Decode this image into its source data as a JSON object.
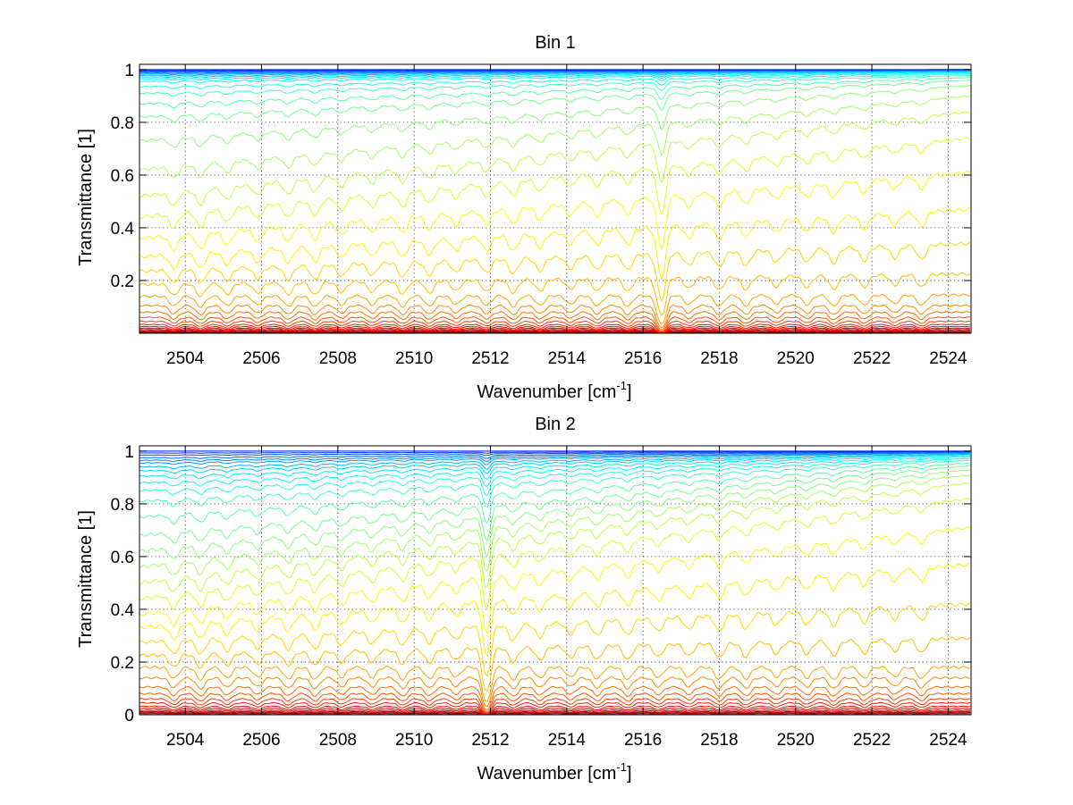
{
  "chart_data": [
    {
      "type": "line",
      "title": "Bin 1",
      "xlabel_main": "Wavenumber [cm",
      "xlabel_sup": "-1",
      "xlabel_end": "]",
      "ylabel": "Transmittance [1]",
      "xlim": [
        2502.8,
        2524.6
      ],
      "ylim": [
        0,
        1.02
      ],
      "xticks": [
        2504,
        2506,
        2508,
        2510,
        2512,
        2514,
        2516,
        2518,
        2520,
        2522,
        2524
      ],
      "yticks": [
        0.2,
        0.4,
        0.6,
        0.8,
        1
      ],
      "grid": true,
      "colormap": "jet (red = most absorbing, blue = least absorbing)",
      "series_baselines": [
        0.003,
        0.006,
        0.01,
        0.014,
        0.019,
        0.025,
        0.033,
        0.045,
        0.06,
        0.08,
        0.105,
        0.14,
        0.185,
        0.235,
        0.29,
        0.36,
        0.44,
        0.52,
        0.62,
        0.73,
        0.82,
        0.87,
        0.91,
        0.935,
        0.955,
        0.965,
        0.972,
        0.978,
        0.983,
        0.987,
        0.991,
        0.994,
        0.997,
        1.0
      ],
      "series_end_values": [
        0.003,
        0.006,
        0.01,
        0.014,
        0.019,
        0.025,
        0.033,
        0.045,
        0.06,
        0.08,
        0.105,
        0.145,
        0.225,
        0.34,
        0.47,
        0.61,
        0.74,
        0.84,
        0.9,
        0.94,
        0.96,
        0.97,
        0.978,
        0.983,
        0.987,
        0.99,
        0.993,
        0.995,
        0.997,
        0.998,
        0.999,
        1.0,
        1.0,
        1.0
      ],
      "absorption_lines": [
        2503.7,
        2504.4,
        2505.1,
        2505.9,
        2506.7,
        2507.4,
        2508.1,
        2508.9,
        2509.7,
        2510.4,
        2511.1,
        2511.9,
        2512.6,
        2513.3,
        2514.1,
        2514.8,
        2515.6,
        2516.4,
        2517.2,
        2518.0,
        2518.7,
        2519.5,
        2520.3,
        2521.0,
        2521.8,
        2522.6,
        2523.3
      ],
      "strong_line": 2516.5
    },
    {
      "type": "line",
      "title": "Bin 2",
      "xlabel_main": "Wavenumber [cm",
      "xlabel_sup": "-1",
      "xlabel_end": "]",
      "ylabel": "Transmittance [1]",
      "xlim": [
        2502.8,
        2524.6
      ],
      "ylim": [
        0,
        1.02
      ],
      "xticks": [
        2504,
        2506,
        2508,
        2510,
        2512,
        2514,
        2516,
        2518,
        2520,
        2522,
        2524
      ],
      "yticks": [
        0,
        0.2,
        0.4,
        0.6,
        0.8,
        1
      ],
      "grid": true,
      "colormap": "jet (red = most absorbing, blue = least absorbing)",
      "series_baselines": [
        0.004,
        0.008,
        0.012,
        0.017,
        0.024,
        0.032,
        0.045,
        0.06,
        0.08,
        0.105,
        0.14,
        0.18,
        0.225,
        0.275,
        0.33,
        0.38,
        0.44,
        0.5,
        0.56,
        0.62,
        0.68,
        0.75,
        0.81,
        0.85,
        0.88,
        0.905,
        0.925,
        0.94,
        0.955,
        0.965,
        0.975,
        0.985,
        0.993,
        1.0
      ],
      "series_end_values": [
        0.004,
        0.008,
        0.012,
        0.017,
        0.024,
        0.032,
        0.045,
        0.06,
        0.08,
        0.105,
        0.14,
        0.18,
        0.29,
        0.42,
        0.57,
        0.71,
        0.82,
        0.88,
        0.91,
        0.93,
        0.945,
        0.955,
        0.965,
        0.972,
        0.978,
        0.983,
        0.987,
        0.99,
        0.993,
        0.995,
        0.997,
        0.998,
        0.999,
        1.0
      ],
      "absorption_lines": [
        2503.7,
        2504.4,
        2505.1,
        2505.9,
        2506.7,
        2507.4,
        2508.1,
        2508.9,
        2509.7,
        2510.4,
        2511.1,
        2511.9,
        2512.6,
        2513.3,
        2514.1,
        2514.8,
        2515.6,
        2516.4,
        2517.2,
        2518.0,
        2518.7,
        2519.5,
        2520.3,
        2521.0,
        2521.8,
        2522.6,
        2523.3
      ],
      "strong_line": 2511.9
    }
  ]
}
